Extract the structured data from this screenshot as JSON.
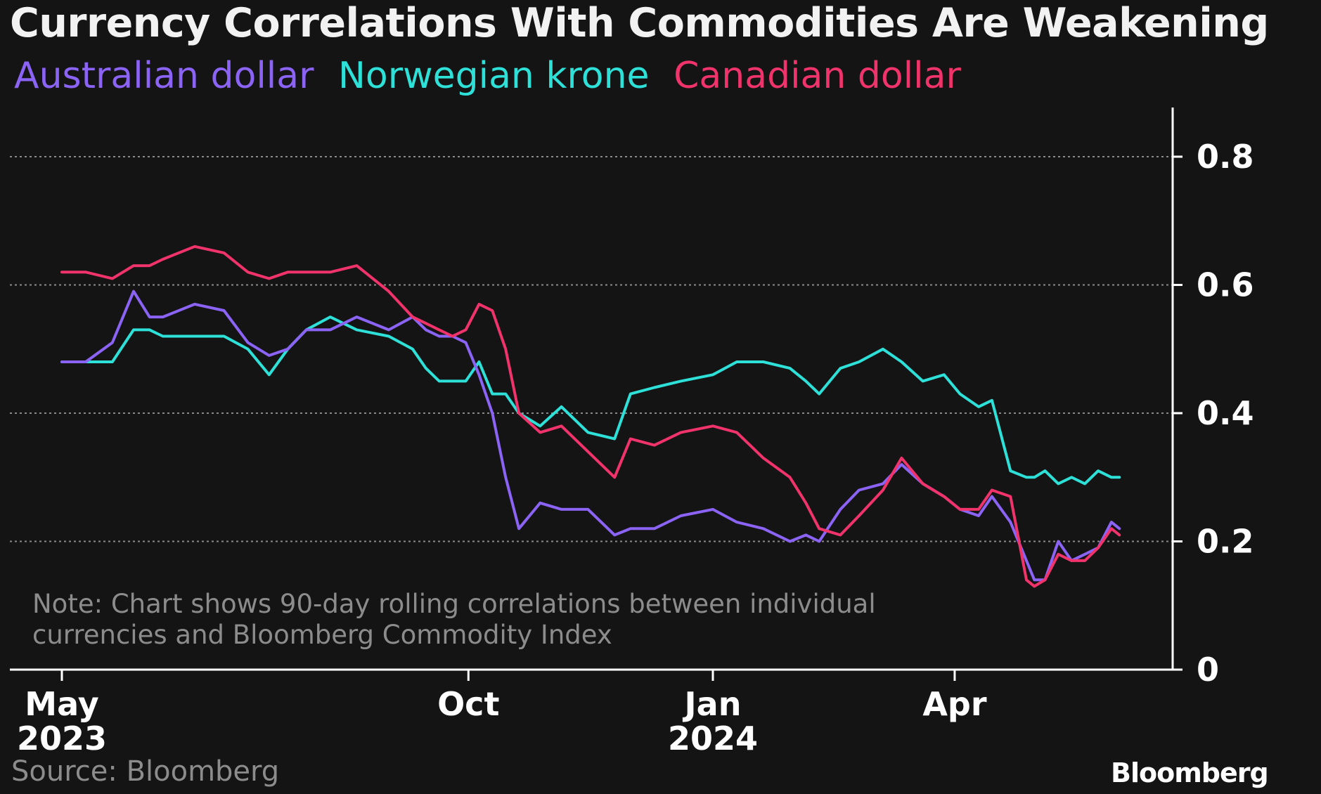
{
  "chart_data": {
    "type": "line",
    "title": "Currency Correlations With Commodities Are Weakening",
    "xlabel": "",
    "ylabel": "",
    "ylim": [
      0,
      0.87
    ],
    "yticks": [
      "0",
      "0.2",
      "0.4",
      "0.6",
      "0.8"
    ],
    "ytick_values": [
      0,
      0.2,
      0.4,
      0.6,
      0.8
    ],
    "xticks": [
      {
        "label": "May",
        "sublabel": "2023",
        "date": "2023-05-01"
      },
      {
        "label": "Oct",
        "sublabel": "",
        "date": "2023-10-01"
      },
      {
        "label": "Jan",
        "sublabel": "2024",
        "date": "2024-01-01"
      },
      {
        "label": "Apr",
        "sublabel": "",
        "date": "2024-04-01"
      }
    ],
    "xlim": [
      "2023-05-01",
      "2024-06-05"
    ],
    "grid": true,
    "legend_position": "top-left",
    "note": "Note: Chart shows 90-day rolling correlations between individual currencies and Bloomberg Commodity Index",
    "source": "Source: Bloomberg",
    "logo": "Bloomberg",
    "series": [
      {
        "name": "Australian dollar",
        "color": "#8b63f5",
        "x": [
          "2023-05-01",
          "2023-05-10",
          "2023-05-20",
          "2023-05-28",
          "2023-06-03",
          "2023-06-08",
          "2023-06-20",
          "2023-07-01",
          "2023-07-10",
          "2023-07-18",
          "2023-07-25",
          "2023-08-01",
          "2023-08-10",
          "2023-08-20",
          "2023-09-01",
          "2023-09-10",
          "2023-09-15",
          "2023-09-20",
          "2023-09-25",
          "2023-09-30",
          "2023-10-05",
          "2023-10-10",
          "2023-10-15",
          "2023-10-20",
          "2023-10-28",
          "2023-11-05",
          "2023-11-15",
          "2023-11-25",
          "2023-12-01",
          "2023-12-10",
          "2023-12-20",
          "2024-01-01",
          "2024-01-10",
          "2024-01-20",
          "2024-01-30",
          "2024-02-05",
          "2024-02-10",
          "2024-02-18",
          "2024-02-25",
          "2024-03-05",
          "2024-03-12",
          "2024-03-20",
          "2024-03-28",
          "2024-04-03",
          "2024-04-10",
          "2024-04-15",
          "2024-04-22",
          "2024-04-28",
          "2024-05-01",
          "2024-05-05",
          "2024-05-10",
          "2024-05-15",
          "2024-05-20",
          "2024-05-25",
          "2024-05-30",
          "2024-06-02"
        ],
        "values": [
          0.48,
          0.48,
          0.51,
          0.59,
          0.55,
          0.55,
          0.57,
          0.56,
          0.51,
          0.49,
          0.5,
          0.53,
          0.53,
          0.55,
          0.53,
          0.55,
          0.53,
          0.52,
          0.52,
          0.51,
          0.46,
          0.4,
          0.3,
          0.22,
          0.26,
          0.25,
          0.25,
          0.21,
          0.22,
          0.22,
          0.24,
          0.25,
          0.23,
          0.22,
          0.2,
          0.21,
          0.2,
          0.25,
          0.28,
          0.29,
          0.32,
          0.29,
          0.27,
          0.25,
          0.24,
          0.27,
          0.23,
          0.17,
          0.14,
          0.14,
          0.2,
          0.17,
          0.18,
          0.19,
          0.23,
          0.22
        ]
      },
      {
        "name": "Norwegian krone",
        "color": "#2de0d8",
        "x": [
          "2023-05-01",
          "2023-05-10",
          "2023-05-20",
          "2023-05-28",
          "2023-06-03",
          "2023-06-08",
          "2023-06-20",
          "2023-07-01",
          "2023-07-10",
          "2023-07-18",
          "2023-07-25",
          "2023-08-01",
          "2023-08-10",
          "2023-08-20",
          "2023-09-01",
          "2023-09-10",
          "2023-09-15",
          "2023-09-20",
          "2023-09-25",
          "2023-09-30",
          "2023-10-05",
          "2023-10-10",
          "2023-10-15",
          "2023-10-20",
          "2023-10-28",
          "2023-11-05",
          "2023-11-15",
          "2023-11-25",
          "2023-12-01",
          "2023-12-10",
          "2023-12-20",
          "2024-01-01",
          "2024-01-10",
          "2024-01-20",
          "2024-01-30",
          "2024-02-05",
          "2024-02-10",
          "2024-02-18",
          "2024-02-25",
          "2024-03-05",
          "2024-03-12",
          "2024-03-20",
          "2024-03-28",
          "2024-04-03",
          "2024-04-10",
          "2024-04-15",
          "2024-04-22",
          "2024-04-28",
          "2024-05-01",
          "2024-05-05",
          "2024-05-10",
          "2024-05-15",
          "2024-05-20",
          "2024-05-25",
          "2024-05-30",
          "2024-06-02"
        ],
        "values": [
          0.48,
          0.48,
          0.48,
          0.53,
          0.53,
          0.52,
          0.52,
          0.52,
          0.5,
          0.46,
          0.5,
          0.53,
          0.55,
          0.53,
          0.52,
          0.5,
          0.47,
          0.45,
          0.45,
          0.45,
          0.48,
          0.43,
          0.43,
          0.4,
          0.38,
          0.41,
          0.37,
          0.36,
          0.43,
          0.44,
          0.45,
          0.46,
          0.48,
          0.48,
          0.47,
          0.45,
          0.43,
          0.47,
          0.48,
          0.5,
          0.48,
          0.45,
          0.46,
          0.43,
          0.41,
          0.42,
          0.31,
          0.3,
          0.3,
          0.31,
          0.29,
          0.3,
          0.29,
          0.31,
          0.3,
          0.3
        ]
      },
      {
        "name": "Canadian dollar",
        "color": "#f0336b",
        "x": [
          "2023-05-01",
          "2023-05-10",
          "2023-05-20",
          "2023-05-28",
          "2023-06-03",
          "2023-06-08",
          "2023-06-20",
          "2023-07-01",
          "2023-07-10",
          "2023-07-18",
          "2023-07-25",
          "2023-08-01",
          "2023-08-10",
          "2023-08-20",
          "2023-09-01",
          "2023-09-10",
          "2023-09-15",
          "2023-09-20",
          "2023-09-25",
          "2023-09-30",
          "2023-10-05",
          "2023-10-10",
          "2023-10-15",
          "2023-10-20",
          "2023-10-28",
          "2023-11-05",
          "2023-11-15",
          "2023-11-25",
          "2023-12-01",
          "2023-12-10",
          "2023-12-20",
          "2024-01-01",
          "2024-01-10",
          "2024-01-20",
          "2024-01-30",
          "2024-02-05",
          "2024-02-10",
          "2024-02-18",
          "2024-02-25",
          "2024-03-05",
          "2024-03-12",
          "2024-03-20",
          "2024-03-28",
          "2024-04-03",
          "2024-04-10",
          "2024-04-15",
          "2024-04-22",
          "2024-04-28",
          "2024-05-01",
          "2024-05-05",
          "2024-05-10",
          "2024-05-15",
          "2024-05-20",
          "2024-05-25",
          "2024-05-30",
          "2024-06-02"
        ],
        "values": [
          0.62,
          0.62,
          0.61,
          0.63,
          0.63,
          0.64,
          0.66,
          0.65,
          0.62,
          0.61,
          0.62,
          0.62,
          0.62,
          0.63,
          0.59,
          0.55,
          0.54,
          0.53,
          0.52,
          0.53,
          0.57,
          0.56,
          0.5,
          0.4,
          0.37,
          0.38,
          0.34,
          0.3,
          0.36,
          0.35,
          0.37,
          0.38,
          0.37,
          0.33,
          0.3,
          0.26,
          0.22,
          0.21,
          0.24,
          0.28,
          0.33,
          0.29,
          0.27,
          0.25,
          0.25,
          0.28,
          0.27,
          0.14,
          0.13,
          0.14,
          0.18,
          0.17,
          0.17,
          0.19,
          0.22,
          0.21
        ]
      }
    ]
  }
}
